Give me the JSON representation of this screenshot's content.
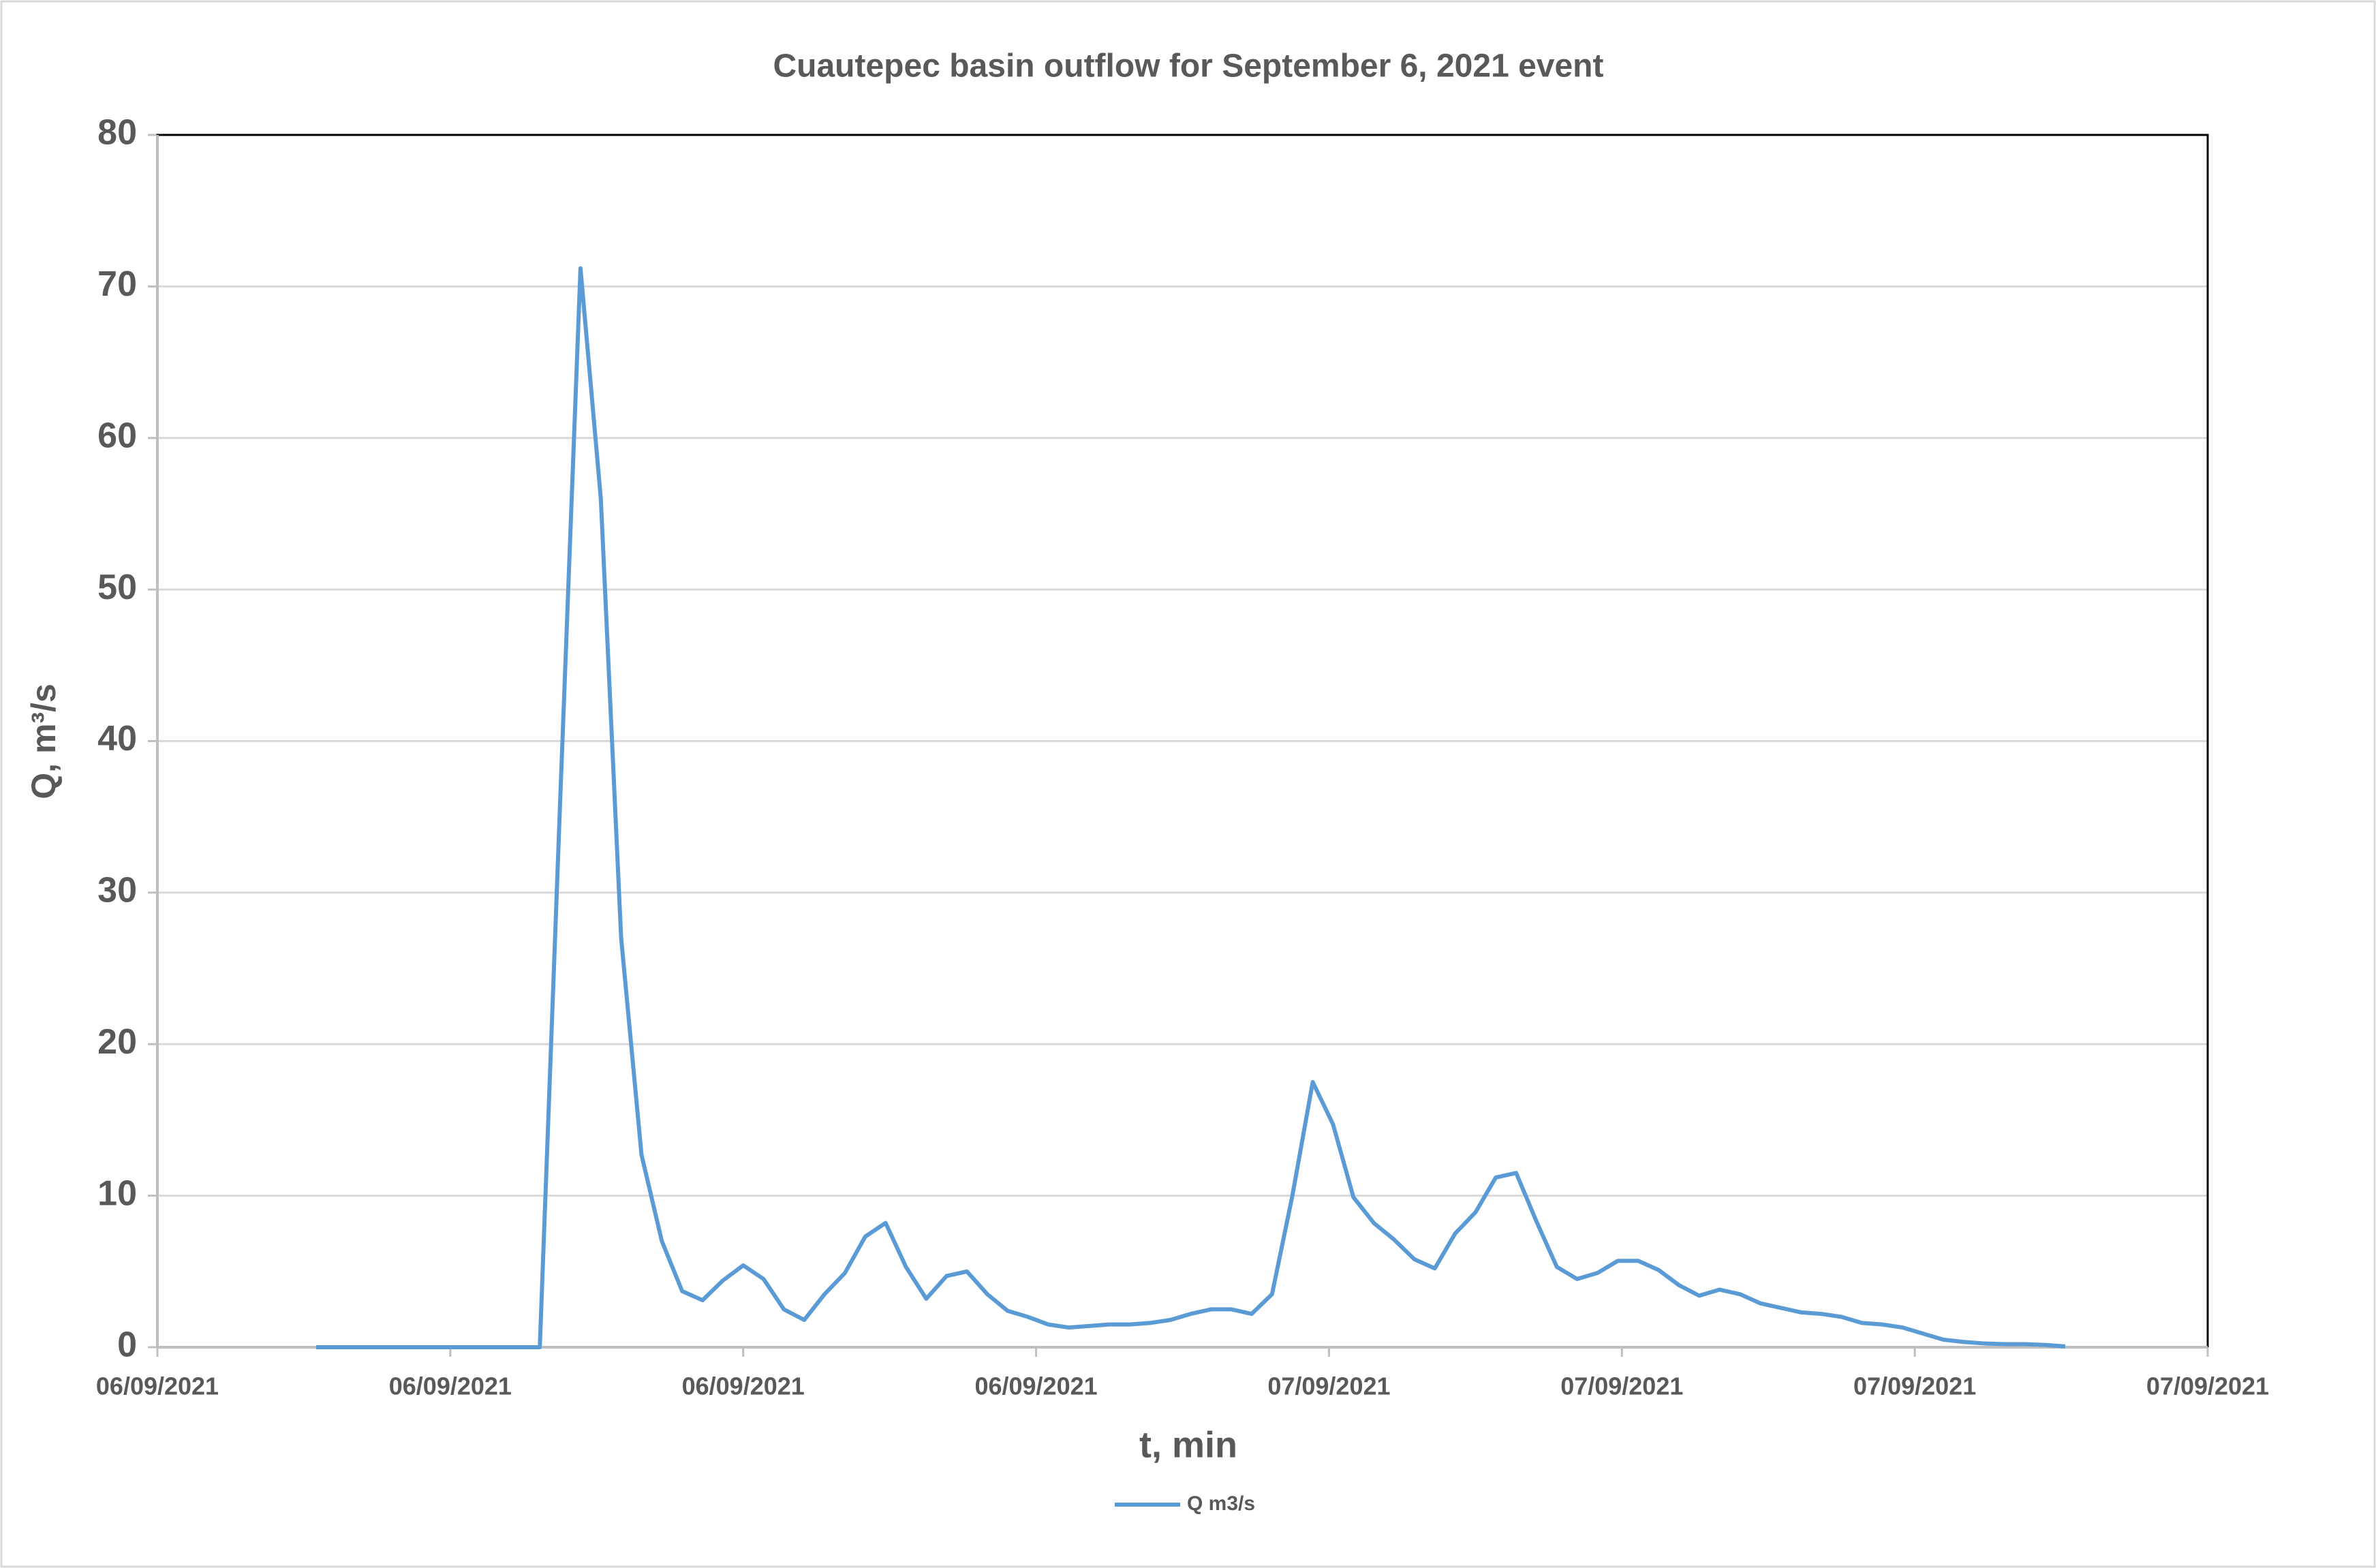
{
  "chart_data": {
    "type": "line",
    "title": "Cuautepec basin outflow  for  September  6,  2021 event",
    "x_label": "t, min",
    "y_label": "Q, m³/s",
    "x": [
      97.5,
      110,
      122.5,
      135,
      147.5,
      160,
      172.5,
      185,
      197.5,
      210,
      222.5,
      235,
      247.5,
      260,
      272.5,
      285,
      297.5,
      310,
      322.5,
      335,
      347.5,
      360,
      372.5,
      385,
      397.5,
      410,
      422.5,
      435,
      447.5,
      460,
      472.5,
      485,
      497.5,
      510,
      522.5,
      535,
      547.5,
      560,
      572.5,
      585,
      597.5,
      610,
      622.5,
      635,
      647.5,
      660,
      672.5,
      685,
      697.5,
      710,
      722.5,
      735,
      747.5,
      760,
      772.5,
      785,
      797.5,
      810,
      822.5,
      835,
      847.5,
      860,
      872.5,
      885,
      897.5,
      910,
      922.5,
      935,
      947.5,
      960,
      972.5,
      985,
      997.5,
      1010,
      1022.5,
      1035,
      1047.5,
      1060,
      1072.5,
      1085,
      1097.5,
      1110,
      1122.5,
      1135,
      1147.5,
      1160,
      1172.5
    ],
    "series": [
      {
        "name": "Q m3/s",
        "color": "#5b9bd5",
        "values": [
          0,
          0,
          0,
          0,
          0,
          0,
          0,
          0,
          0,
          0,
          0,
          0,
          36,
          71.2,
          56,
          27,
          12.7,
          7,
          3.7,
          3.1,
          4.4,
          5.4,
          4.5,
          2.5,
          1.8,
          3.5,
          4.9,
          7.3,
          8.2,
          5.3,
          3.2,
          4.7,
          5.0,
          3.5,
          2.4,
          2.0,
          1.5,
          1.3,
          1.4,
          1.5,
          1.5,
          1.6,
          1.8,
          2.2,
          2.5,
          2.5,
          2.2,
          3.5,
          10,
          17.5,
          14.7,
          9.9,
          8.2,
          7.1,
          5.8,
          5.2,
          7.5,
          8.9,
          11.2,
          11.5,
          8.3,
          5.3,
          4.5,
          4.9,
          5.7,
          5.7,
          5.1,
          4.1,
          3.4,
          3.8,
          3.5,
          2.9,
          2.6,
          2.3,
          2.2,
          2.0,
          1.6,
          1.5,
          1.3,
          0.9,
          0.5,
          0.35,
          0.25,
          0.2,
          0.2,
          0.15,
          0.05
        ]
      }
    ],
    "xlim": [
      0,
      1260
    ],
    "xticks": [
      {
        "value": 0,
        "label": "06/09/2021"
      },
      {
        "value": 180,
        "label": "06/09/2021"
      },
      {
        "value": 360,
        "label": "06/09/2021"
      },
      {
        "value": 540,
        "label": "06/09/2021"
      },
      {
        "value": 720,
        "label": "07/09/2021"
      },
      {
        "value": 900,
        "label": "07/09/2021"
      },
      {
        "value": 1080,
        "label": "07/09/2021"
      },
      {
        "value": 1260,
        "label": "07/09/2021"
      }
    ],
    "ylim": [
      0,
      80
    ],
    "yticks": [
      0,
      10,
      20,
      30,
      40,
      50,
      60,
      70,
      80
    ],
    "grid": true,
    "legend": "bottom"
  }
}
